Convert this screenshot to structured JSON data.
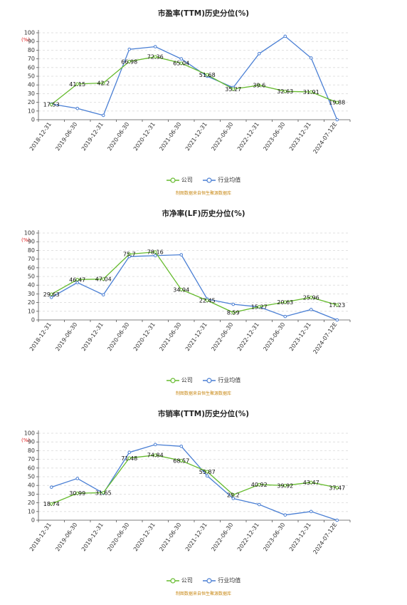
{
  "colors": {
    "company": "#66bb2e",
    "industry": "#4a7fd4",
    "unit": "#e02020",
    "source": "#c98a18"
  },
  "legend": {
    "company": "公司",
    "industry": "行业均值"
  },
  "source_note": "制图数据来自恒生聚源数据库",
  "unit_label": "(%)",
  "chart_data": [
    {
      "type": "line",
      "title": "市盈率(TTM)历史分位(%)",
      "ylim": [
        0,
        100
      ],
      "yticks": [
        "0",
        "10",
        "20",
        "30",
        "40",
        "50",
        "60",
        "70",
        "80",
        "90",
        "100"
      ],
      "categories": [
        "2018-12-31",
        "2019-06-30",
        "2019-12-31",
        "2020-06-30",
        "2020-12-31",
        "2021-06-30",
        "2021-12-31",
        "2022-06-30",
        "2022-12-31",
        "2023-06-30",
        "2023-12-31",
        "2024-07-12E"
      ],
      "series": [
        {
          "name": "公司",
          "values": [
            17.53,
            41.15,
            42.2,
            66.98,
            72.36,
            65.04,
            51.68,
            35.27,
            39.6,
            32.63,
            31.91,
            19.88
          ],
          "labels": [
            "17.53",
            "41.15",
            "42.2",
            "66.98",
            "72.36",
            "65.04",
            "51.68",
            "35.27",
            "39.6",
            "32.63",
            "31.91",
            "19.88"
          ]
        },
        {
          "name": "行业均值",
          "values": [
            18,
            13,
            5,
            81,
            84,
            70,
            50,
            37,
            76,
            96,
            71,
            0
          ]
        }
      ]
    },
    {
      "type": "line",
      "title": "市净率(LF)历史分位(%)",
      "ylim": [
        0,
        100
      ],
      "yticks": [
        "0",
        "10",
        "20",
        "30",
        "40",
        "50",
        "60",
        "70",
        "80",
        "90",
        "100"
      ],
      "categories": [
        "2018-12-31",
        "2019-06-30",
        "2019-12-31",
        "2020-06-30",
        "2020-12-31",
        "2021-06-30",
        "2021-12-31",
        "2022-06-30",
        "2022-12-31",
        "2023-06-30",
        "2023-12-31",
        "2024-07-12E"
      ],
      "series": [
        {
          "name": "公司",
          "values": [
            29.63,
            46.47,
            47.04,
            75.7,
            78.16,
            34.94,
            22.45,
            8.59,
            15.27,
            20.63,
            25.96,
            17.23
          ],
          "labels": [
            "29.63",
            "46.47",
            "47.04",
            "75.7",
            "78.16",
            "34.94",
            "22.45",
            "8.59",
            "15.27",
            "20.63",
            "25.96",
            "17.23"
          ]
        },
        {
          "name": "行业均值",
          "values": [
            26,
            43,
            29,
            73,
            74,
            75,
            24,
            18,
            15,
            4,
            12,
            0
          ]
        }
      ]
    },
    {
      "type": "line",
      "title": "市销率(TTM)历史分位(%)",
      "ylim": [
        0,
        100
      ],
      "yticks": [
        "0",
        "10",
        "20",
        "30",
        "40",
        "50",
        "60",
        "70",
        "80",
        "90",
        "100"
      ],
      "categories": [
        "2018-12-31",
        "2019-06-30",
        "2019-12-31",
        "2020-06-30",
        "2020-12-31",
        "2021-06-30",
        "2021-12-31",
        "2022-06-30",
        "2022-12-31",
        "2023-06-30",
        "2023-12-31",
        "2024-07-12E"
      ],
      "series": [
        {
          "name": "公司",
          "values": [
            18.74,
            30.99,
            31.65,
            71.48,
            74.84,
            68.57,
            55.87,
            29.2,
            40.92,
            39.92,
            43.47,
            37.47
          ],
          "labels": [
            "18.74",
            "30.99",
            "31.65",
            "71.48",
            "74.84",
            "68.57",
            "55.87",
            "29.2",
            "40.92",
            "39.92",
            "43.47",
            "37.47"
          ]
        },
        {
          "name": "行业均值",
          "values": [
            38,
            48,
            31,
            78,
            87,
            85,
            51,
            25,
            18,
            6,
            10,
            0
          ]
        }
      ]
    }
  ]
}
